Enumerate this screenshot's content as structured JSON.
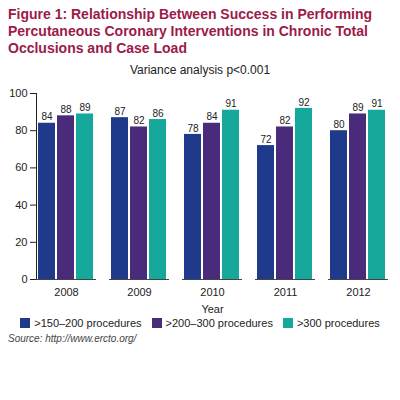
{
  "chart_data": {
    "type": "bar",
    "title": "Figure 1: Relationship Between Success in Performing Percutaneous Coronary Interventions in Chronic Total Occlusions and Case Load",
    "subtitle": "Variance analysis p<0.001",
    "x_label": "Year",
    "caption": "Source: http://www.ercto.org/",
    "categories": [
      "2008",
      "2009",
      "2010",
      "2011",
      "2012"
    ],
    "series": [
      {
        "name": ">150–200 procedures",
        "color": "#1f3a8a",
        "values": [
          84,
          87,
          78,
          72,
          80
        ]
      },
      {
        "name": ">200–300 procedures",
        "color": "#4a2a7a",
        "values": [
          88,
          82,
          84,
          82,
          89
        ]
      },
      {
        "name": ">300 procedures",
        "color": "#16a89b",
        "values": [
          89,
          86,
          91,
          92,
          91
        ]
      }
    ],
    "ylim": [
      0,
      100
    ],
    "yticks": [
      0,
      20,
      40,
      60,
      80,
      100
    ],
    "grid": false,
    "data_labels": true,
    "legend": "bottom"
  }
}
